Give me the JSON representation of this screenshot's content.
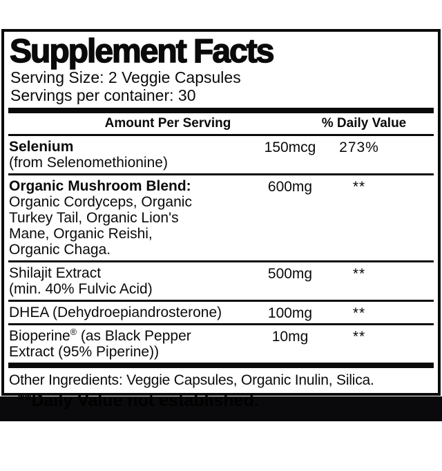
{
  "panel": {
    "title": "Supplement Facts",
    "serving_size": "Serving Size: 2 Veggie Capsules",
    "servings_per_container": "Servings per container: 30",
    "columns": {
      "amount_header": "Amount Per Serving",
      "daily_value_header": "% Daily Value"
    },
    "rows": [
      {
        "name_bold": "Selenium",
        "name_sub": "(from Selenomethionine)",
        "amount": "150mcg",
        "daily_value": "273%"
      },
      {
        "name_bold": "Organic Mushroom Blend:",
        "name_sub": "Organic Cordyceps, Organic\nTurkey Tail, Organic Lion's\nMane, Organic Reishi,\nOrganic Chaga.",
        "amount": "600mg",
        "daily_value": "**"
      },
      {
        "name": "Shilajit Extract",
        "name_sub": "(min. 40% Fulvic Acid)",
        "amount": "500mg",
        "daily_value": "**"
      },
      {
        "name": "DHEA (Dehydroepiandrosterone)",
        "amount": "100mg",
        "daily_value": "**"
      },
      {
        "name_pre": "Bioperine",
        "reg_mark": "®",
        "name_post": " (as Black Pepper\nExtract (95% Piperine))",
        "amount": "10mg",
        "daily_value": "**"
      }
    ],
    "other_ingredients": "Other Ingredients: Veggie Capsules, Organic Inulin, Silica.",
    "footnote": "**Daily Value not established.",
    "colors": {
      "ink": "#0a0a0a",
      "background": "#ffffff",
      "footnote_band": "#0a0a0c"
    }
  }
}
